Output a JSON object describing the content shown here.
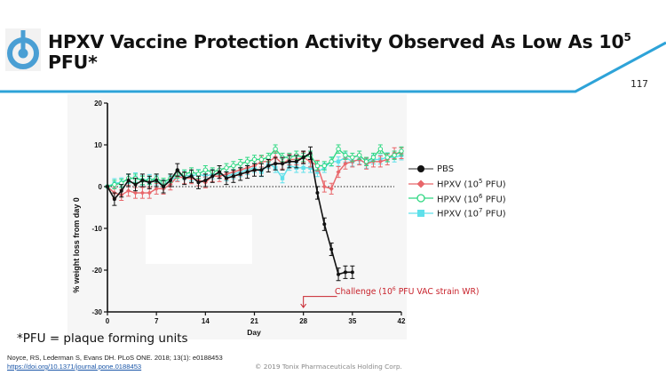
{
  "slide": {
    "title_part1": "HPXV Vaccine Protection Activity Observed As Low As 10",
    "title_sup": "5",
    "title_part2": " PFU*",
    "page_number": "117",
    "footnote": "*PFU = plaque forming units",
    "citation": "Noyce, RS, Lederman S, Evans DH. PLoS ONE. 2018; 13(1): e0188453",
    "citation_link": "https://doi.org/10.1371/journal.pone.0188453",
    "copyright": "© 2019 Tonix Pharmaceuticals Holding Corp.",
    "accent_color": "#2ea3d8",
    "logo_color": "#4a9fd4"
  },
  "chart_data": {
    "type": "line",
    "title": "",
    "xlabel": "Day",
    "ylabel": "% weight loss from day 0",
    "xlim": [
      0,
      42
    ],
    "ylim": [
      -30,
      20
    ],
    "xticks": [
      "0",
      "7",
      "14",
      "21",
      "28",
      "35",
      "42"
    ],
    "xtick_values": [
      0,
      7,
      14,
      21,
      28,
      35,
      42
    ],
    "yticks": [
      "-30",
      "-20",
      "-10",
      "0",
      "10",
      "20"
    ],
    "ytick_values": [
      -30,
      -20,
      -10,
      0,
      10,
      20
    ],
    "reference_line": 0,
    "annotation": {
      "text_pre": "Challenge (10",
      "text_sup": "6",
      "text_post": " PFU VAC strain WR)",
      "day": 28,
      "color": "#c8232c"
    },
    "series": [
      {
        "name_pre": "HPXV (10",
        "name_sup": "7",
        "name_post": " PFU)",
        "color": "#5fe0ea",
        "marker": "square",
        "x": [
          0,
          1,
          2,
          3,
          4,
          5,
          6,
          7,
          8,
          9,
          10,
          11,
          12,
          13,
          14,
          15,
          16,
          17,
          18,
          19,
          20,
          21,
          22,
          23,
          24,
          25,
          26,
          27,
          28,
          29,
          30,
          31,
          32,
          33,
          34,
          35,
          36,
          37,
          38,
          39,
          40,
          41,
          42
        ],
        "y": [
          0,
          0.8,
          1,
          1.8,
          2.2,
          1.5,
          1.8,
          1.5,
          0.5,
          1.5,
          2.5,
          2.8,
          2.5,
          3,
          2.5,
          3,
          3,
          2.5,
          3,
          3.5,
          4,
          4.5,
          3.5,
          5.5,
          4.5,
          2,
          5,
          4.5,
          4.5,
          4.5,
          3.5,
          4.5,
          6,
          6,
          7,
          6,
          6.5,
          5.5,
          6.5,
          6.5,
          7,
          7,
          7.5
        ],
        "err": 1.1
      },
      {
        "name_pre": "HPXV (10",
        "name_sup": "5",
        "name_post": " PFU)",
        "color": "#e8666a",
        "marker": "diamond",
        "x": [
          0,
          1,
          2,
          3,
          4,
          5,
          6,
          7,
          8,
          9,
          10,
          11,
          12,
          13,
          14,
          15,
          16,
          17,
          18,
          19,
          20,
          21,
          22,
          23,
          24,
          25,
          26,
          27,
          28,
          29,
          30,
          31,
          32,
          33,
          34,
          35,
          36,
          37,
          38,
          39,
          40,
          41,
          42
        ],
        "y": [
          0,
          -1.5,
          -2,
          -1,
          -1.5,
          -1.5,
          -1.5,
          -0.5,
          -0.5,
          0.5,
          2.5,
          2,
          2,
          1.5,
          1,
          2.5,
          2.5,
          3,
          3.5,
          4,
          4.5,
          5,
          6,
          6,
          7,
          5.5,
          6.5,
          6.5,
          7,
          6,
          5,
          0,
          -0.5,
          3.5,
          5.5,
          6,
          6.5,
          5.5,
          6,
          6,
          6.5,
          8,
          8
        ],
        "err": 1.3
      },
      {
        "name_pre": "HPXV (10",
        "name_sup": "6",
        "name_post": " PFU)",
        "color": "#2fd882",
        "marker": "circle",
        "x": [
          0,
          1,
          2,
          3,
          4,
          5,
          6,
          7,
          8,
          9,
          10,
          11,
          12,
          13,
          14,
          15,
          16,
          17,
          18,
          19,
          20,
          21,
          22,
          23,
          24,
          25,
          26,
          27,
          28,
          29,
          30,
          31,
          32,
          33,
          34,
          35,
          36,
          37,
          38,
          39,
          40,
          41,
          42
        ],
        "y": [
          0,
          0.5,
          0.8,
          2,
          2,
          1.5,
          1.5,
          2,
          1,
          2,
          3,
          3,
          3.5,
          3,
          4,
          3.5,
          4,
          4.5,
          5,
          5.5,
          6,
          6.5,
          6.5,
          7,
          9,
          7,
          7,
          7.5,
          7,
          7.5,
          5,
          5,
          6,
          9,
          7.5,
          7,
          7.5,
          6,
          7,
          9,
          7,
          7.5,
          8.5
        ],
        "err": 1.0
      },
      {
        "name": "PBS",
        "color": "#111111",
        "marker": "circle",
        "x": [
          0,
          1,
          2,
          3,
          4,
          5,
          6,
          7,
          8,
          9,
          10,
          11,
          12,
          13,
          14,
          15,
          16,
          17,
          18,
          19,
          20,
          21,
          22,
          23,
          24,
          25,
          26,
          27,
          28,
          29,
          30,
          31,
          32,
          33,
          34,
          35
        ],
        "y": [
          0,
          -3,
          -1,
          1.5,
          0.5,
          1.5,
          1,
          1.5,
          0,
          1.5,
          4,
          2,
          2.5,
          1,
          1.5,
          2.5,
          3.5,
          2,
          2.5,
          3,
          3.5,
          4,
          4,
          5,
          5.5,
          5.5,
          6,
          6,
          7,
          8,
          -1.5,
          -9,
          -15,
          -21,
          -20.5,
          -20.5
        ],
        "err": 1.5
      }
    ]
  }
}
